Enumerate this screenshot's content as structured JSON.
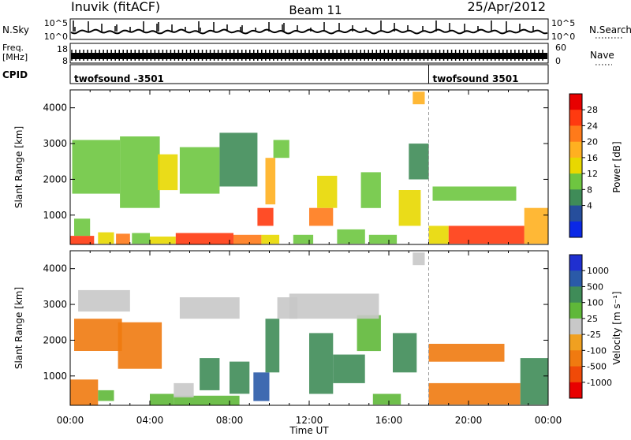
{
  "header": {
    "station": "Inuvik (fitACF)",
    "beam": "Beam 11",
    "date": "25/Apr/2012"
  },
  "strip_panels": {
    "nsky": {
      "left_label": "N.Sky",
      "left_ticks": [
        "10^5",
        "10^0"
      ],
      "right_label": "N.Search",
      "right_ticks": [
        "10^5",
        "10^0"
      ]
    },
    "freq": {
      "left_label_1": "Freq.",
      "left_label_2": "[MHz]",
      "left_ticks": [
        "18",
        "8"
      ],
      "right_label": "Nave",
      "right_ticks": [
        "60",
        "0"
      ]
    },
    "cpid": {
      "label": "CPID",
      "segments": [
        {
          "name": "twofsound -3501",
          "start_hour": 0
        },
        {
          "name": "twofsound 3501",
          "start_hour": 18
        }
      ]
    }
  },
  "x_axis": {
    "label": "Time UT",
    "tick_labels": [
      "00:00",
      "04:00",
      "08:00",
      "12:00",
      "16:00",
      "20:00",
      "00:00"
    ],
    "range_hours": [
      0,
      24
    ]
  },
  "chart_data": [
    {
      "type": "heatmap",
      "name": "power",
      "ylabel": "Slant Range [km]",
      "ylim": [
        180,
        4500
      ],
      "y_ticks": [
        1000,
        2000,
        3000,
        4000
      ],
      "colorbar_label": "Power [dB]",
      "colorbar_ticks": [
        "28",
        "24",
        "20",
        "16",
        "12",
        "8",
        "4"
      ],
      "colorbar_colors": [
        "#e80000",
        "#ff3a10",
        "#ff7a1a",
        "#ffb020",
        "#e8d800",
        "#6ec640",
        "#3f8c58",
        "#264e9c",
        "#0a28e6"
      ],
      "cells": [
        {
          "t": 0.0,
          "t2": 1.2,
          "r": 180,
          "r2": 420,
          "value": 26
        },
        {
          "t": 0.2,
          "t2": 1.0,
          "r": 420,
          "r2": 900,
          "value": 10
        },
        {
          "t": 1.4,
          "t2": 2.2,
          "r": 200,
          "r2": 520,
          "value": 14
        },
        {
          "t": 2.3,
          "t2": 3.0,
          "r": 180,
          "r2": 480,
          "value": 22
        },
        {
          "t": 3.1,
          "t2": 4.0,
          "r": 200,
          "r2": 500,
          "value": 12
        },
        {
          "t": 4.0,
          "t2": 5.3,
          "r": 200,
          "r2": 400,
          "value": 16
        },
        {
          "t": 5.3,
          "t2": 8.2,
          "r": 180,
          "r2": 500,
          "value": 26
        },
        {
          "t": 8.2,
          "t2": 9.6,
          "r": 180,
          "r2": 450,
          "value": 24
        },
        {
          "t": 9.6,
          "t2": 10.5,
          "r": 200,
          "r2": 450,
          "value": 14
        },
        {
          "t": 9.4,
          "t2": 10.2,
          "r": 700,
          "r2": 1200,
          "value": 26
        },
        {
          "t": 9.8,
          "t2": 10.3,
          "r": 1300,
          "r2": 2600,
          "value": 18
        },
        {
          "t": 10.2,
          "t2": 11.0,
          "r": 2600,
          "r2": 3100,
          "value": 12
        },
        {
          "t": 11.2,
          "t2": 12.2,
          "r": 200,
          "r2": 450,
          "value": 10
        },
        {
          "t": 12.0,
          "t2": 13.2,
          "r": 700,
          "r2": 1200,
          "value": 24
        },
        {
          "t": 12.4,
          "t2": 13.4,
          "r": 1200,
          "r2": 2100,
          "value": 16
        },
        {
          "t": 13.4,
          "t2": 14.8,
          "r": 200,
          "r2": 600,
          "value": 12
        },
        {
          "t": 14.6,
          "t2": 15.6,
          "r": 1200,
          "r2": 2200,
          "value": 12
        },
        {
          "t": 15.0,
          "t2": 16.4,
          "r": 200,
          "r2": 450,
          "value": 10
        },
        {
          "t": 16.5,
          "t2": 17.6,
          "r": 700,
          "r2": 1700,
          "value": 14
        },
        {
          "t": 17.0,
          "t2": 18.0,
          "r": 2000,
          "r2": 3000,
          "value": 8
        },
        {
          "t": 17.2,
          "t2": 17.8,
          "r": 4100,
          "r2": 4450,
          "value": 18
        },
        {
          "t": 18.0,
          "t2": 19.0,
          "r": 200,
          "r2": 700,
          "value": 16
        },
        {
          "t": 19.0,
          "t2": 22.8,
          "r": 200,
          "r2": 700,
          "value": 26
        },
        {
          "t": 18.2,
          "t2": 22.4,
          "r": 1400,
          "r2": 1800,
          "value": 12
        },
        {
          "t": 22.8,
          "t2": 24.0,
          "r": 200,
          "r2": 1200,
          "value": 18
        },
        {
          "t": 0.1,
          "t2": 2.5,
          "r": 1600,
          "r2": 3100,
          "value": 10
        },
        {
          "t": 2.5,
          "t2": 4.5,
          "r": 1200,
          "r2": 3200,
          "value": 12
        },
        {
          "t": 4.4,
          "t2": 5.4,
          "r": 1700,
          "r2": 2700,
          "value": 14
        },
        {
          "t": 5.5,
          "t2": 7.5,
          "r": 1600,
          "r2": 2900,
          "value": 10
        },
        {
          "t": 7.5,
          "t2": 9.4,
          "r": 1800,
          "r2": 3300,
          "value": 8
        }
      ]
    },
    {
      "type": "heatmap",
      "name": "velocity",
      "ylabel": "Slant Range [km]",
      "ylim": [
        180,
        4500
      ],
      "y_ticks": [
        1000,
        2000,
        3000,
        4000
      ],
      "colorbar_label": "Velocity [m s⁻¹]",
      "colorbar_ticks": [
        "1000",
        "500",
        "100",
        "25",
        "-25",
        "-100",
        "-500",
        "-1000"
      ],
      "colorbar_colors": [
        "#1f2fd0",
        "#2a5aa8",
        "#3f8c58",
        "#5fb839",
        "#c8c8c8",
        "#f0a020",
        "#f07a10",
        "#f04a08",
        "#e80000"
      ],
      "cells": [
        {
          "t": 0.0,
          "t2": 1.4,
          "r": 180,
          "r2": 900,
          "value": -300
        },
        {
          "t": 1.4,
          "t2": 2.2,
          "r": 300,
          "r2": 600,
          "value": 60
        },
        {
          "t": 2.4,
          "t2": 4.6,
          "r": 1200,
          "r2": 2500,
          "value": -300
        },
        {
          "t": 0.2,
          "t2": 2.6,
          "r": 1700,
          "r2": 2600,
          "value": -120
        },
        {
          "t": 4.0,
          "t2": 5.2,
          "r": 180,
          "r2": 500,
          "value": 60
        },
        {
          "t": 5.2,
          "t2": 8.5,
          "r": 180,
          "r2": 450,
          "value": 60
        },
        {
          "t": 5.2,
          "t2": 6.2,
          "r": 400,
          "r2": 800,
          "value": 0
        },
        {
          "t": 6.5,
          "t2": 7.5,
          "r": 600,
          "r2": 1500,
          "value": 200
        },
        {
          "t": 8.0,
          "t2": 9.0,
          "r": 500,
          "r2": 1400,
          "value": 200
        },
        {
          "t": 9.2,
          "t2": 10.0,
          "r": 300,
          "r2": 1100,
          "value": 800
        },
        {
          "t": 9.8,
          "t2": 10.5,
          "r": 1100,
          "r2": 2600,
          "value": 200
        },
        {
          "t": 10.4,
          "t2": 11.4,
          "r": 2600,
          "r2": 3200,
          "value": 0
        },
        {
          "t": 12.0,
          "t2": 13.2,
          "r": 500,
          "r2": 2200,
          "value": 200
        },
        {
          "t": 13.2,
          "t2": 14.8,
          "r": 800,
          "r2": 1600,
          "value": 200
        },
        {
          "t": 14.4,
          "t2": 15.6,
          "r": 1700,
          "r2": 2700,
          "value": 60
        },
        {
          "t": 15.2,
          "t2": 16.6,
          "r": 200,
          "r2": 500,
          "value": 60
        },
        {
          "t": 16.2,
          "t2": 17.4,
          "r": 1100,
          "r2": 2200,
          "value": 200
        },
        {
          "t": 17.2,
          "t2": 17.8,
          "r": 4100,
          "r2": 4450,
          "value": 0
        },
        {
          "t": 18.0,
          "t2": 21.8,
          "r": 1400,
          "r2": 1900,
          "value": -300
        },
        {
          "t": 18.0,
          "t2": 22.6,
          "r": 200,
          "r2": 800,
          "value": -120
        },
        {
          "t": 22.6,
          "t2": 24.0,
          "r": 200,
          "r2": 1500,
          "value": 300
        },
        {
          "t": 5.5,
          "t2": 8.5,
          "r": 2600,
          "r2": 3200,
          "value": 0
        },
        {
          "t": 0.4,
          "t2": 3.0,
          "r": 2800,
          "r2": 3400,
          "value": 0
        },
        {
          "t": 11.0,
          "t2": 15.5,
          "r": 2600,
          "r2": 3300,
          "value": 0
        }
      ]
    }
  ]
}
